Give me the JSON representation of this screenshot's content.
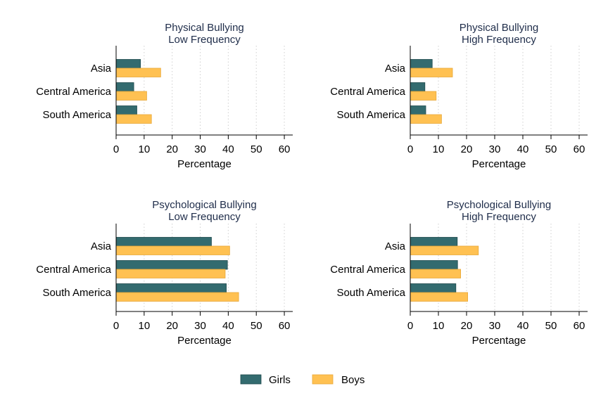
{
  "colors": {
    "girls": "#336b6f",
    "boys": "#ffc152",
    "grid": "#cfcfcf",
    "axis": "#000000",
    "title": "#1f2d4a"
  },
  "legend": {
    "position": "bottom-center",
    "items": [
      {
        "name": "Girls",
        "color": "#336b6f"
      },
      {
        "name": "Boys",
        "color": "#ffc152"
      }
    ]
  },
  "chart_data": [
    {
      "type": "bar",
      "orientation": "horizontal",
      "title": [
        "Physical Bullying",
        "Low Frequency"
      ],
      "categories": [
        "Asia",
        "Central America",
        "South America"
      ],
      "series": [
        {
          "name": "Girls",
          "values": [
            8.7,
            6.3,
            7.4
          ]
        },
        {
          "name": "Boys",
          "values": [
            15.9,
            10.9,
            12.6
          ]
        }
      ],
      "xlabel": "Percentage",
      "xticks": [
        "0",
        "10",
        "20",
        "30",
        "40",
        "50",
        "60"
      ],
      "xlim": [
        0,
        63
      ],
      "grid": true
    },
    {
      "type": "bar",
      "orientation": "horizontal",
      "title": [
        "Physical Bullying",
        "High Frequency"
      ],
      "categories": [
        "Asia",
        "Central America",
        "South America"
      ],
      "series": [
        {
          "name": "Girls",
          "values": [
            7.8,
            5.2,
            5.5
          ]
        },
        {
          "name": "Boys",
          "values": [
            15.0,
            9.2,
            11.1
          ]
        }
      ],
      "xlabel": "Percentage",
      "xticks": [
        "0",
        "10",
        "20",
        "30",
        "40",
        "50",
        "60"
      ],
      "xlim": [
        0,
        63
      ],
      "grid": true
    },
    {
      "type": "bar",
      "orientation": "horizontal",
      "title": [
        "Psychological Bullying",
        "Low Frequency"
      ],
      "categories": [
        "Asia",
        "Central America",
        "South America"
      ],
      "series": [
        {
          "name": "Girls",
          "values": [
            34.0,
            39.7,
            39.3
          ]
        },
        {
          "name": "Boys",
          "values": [
            40.5,
            38.9,
            43.7
          ]
        }
      ],
      "xlabel": "Percentage",
      "xticks": [
        "0",
        "10",
        "20",
        "30",
        "40",
        "50",
        "60"
      ],
      "xlim": [
        0,
        63
      ],
      "grid": true
    },
    {
      "type": "bar",
      "orientation": "horizontal",
      "title": [
        "Psychological Bullying",
        "High Frequency"
      ],
      "categories": [
        "Asia",
        "Central America",
        "South America"
      ],
      "series": [
        {
          "name": "Girls",
          "values": [
            16.7,
            16.8,
            16.2
          ]
        },
        {
          "name": "Boys",
          "values": [
            24.2,
            17.9,
            20.4
          ]
        }
      ],
      "xlabel": "Percentage",
      "xticks": [
        "0",
        "10",
        "20",
        "30",
        "40",
        "50",
        "60"
      ],
      "xlim": [
        0,
        63
      ],
      "grid": true
    }
  ]
}
